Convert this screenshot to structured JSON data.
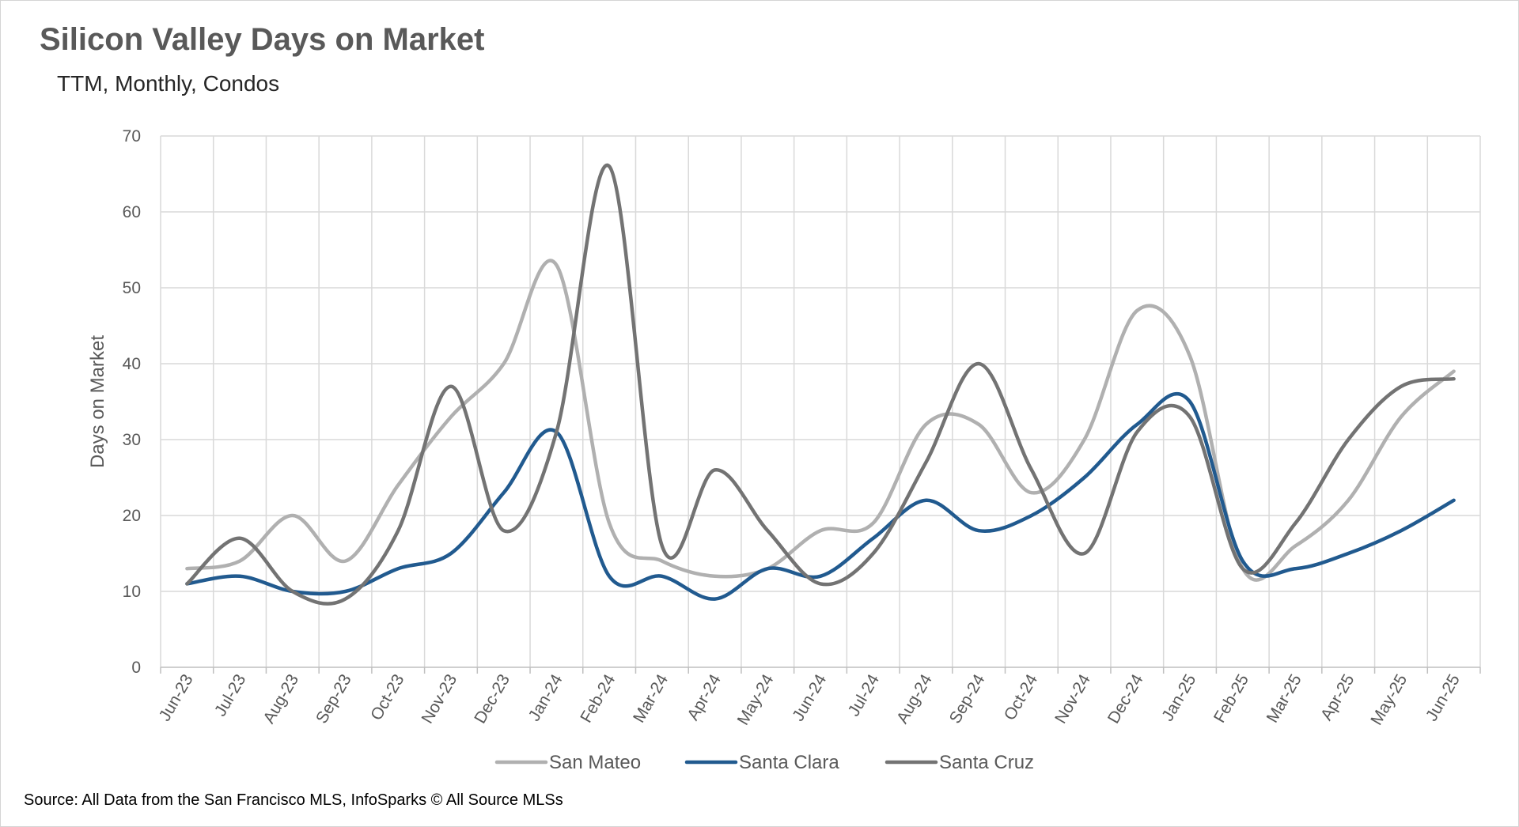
{
  "chart_data": {
    "type": "line",
    "title": "Silicon Valley Days on Market",
    "subtitle": "TTM, Monthly, Condos",
    "xlabel": "",
    "ylabel": "Days on Market",
    "ylim": [
      0,
      70
    ],
    "yticks": [
      0,
      10,
      20,
      30,
      40,
      50,
      60,
      70
    ],
    "grid": true,
    "legend": "bottom",
    "smooth": true,
    "categories": [
      "Jun-23",
      "Jul-23",
      "Aug-23",
      "Sep-23",
      "Oct-23",
      "Nov-23",
      "Dec-23",
      "Jan-24",
      "Feb-24",
      "Mar-24",
      "Apr-24",
      "May-24",
      "Jun-24",
      "Jul-24",
      "Aug-24",
      "Sep-24",
      "Oct-24",
      "Nov-24",
      "Dec-24",
      "Jan-25",
      "Feb-25",
      "Mar-25",
      "Apr-25",
      "May-25",
      "Jun-25"
    ],
    "series": [
      {
        "name": "San Mateo",
        "color": "#b0b0b0",
        "values": [
          13,
          14,
          20,
          14,
          24,
          33,
          40,
          53,
          19,
          14,
          12,
          13,
          18,
          19,
          32,
          32,
          23,
          30,
          47,
          41,
          13,
          16,
          22,
          33,
          39
        ]
      },
      {
        "name": "Santa Clara",
        "color": "#215a8f",
        "values": [
          11,
          12,
          10,
          10,
          13,
          15,
          23,
          31,
          12,
          12,
          9,
          13,
          12,
          17,
          22,
          18,
          20,
          25,
          32,
          35,
          14,
          13,
          15,
          18,
          22
        ]
      },
      {
        "name": "Santa Cruz",
        "color": "#737373",
        "values": [
          11,
          17,
          10,
          9,
          18,
          37,
          18,
          31,
          66,
          16,
          26,
          18,
          11,
          15,
          27,
          40,
          26,
          15,
          31,
          33,
          13,
          19,
          30,
          37,
          38
        ]
      }
    ],
    "source": "Source: All Data from the San Francisco MLS, InfoSparks © All Source MLSs"
  }
}
